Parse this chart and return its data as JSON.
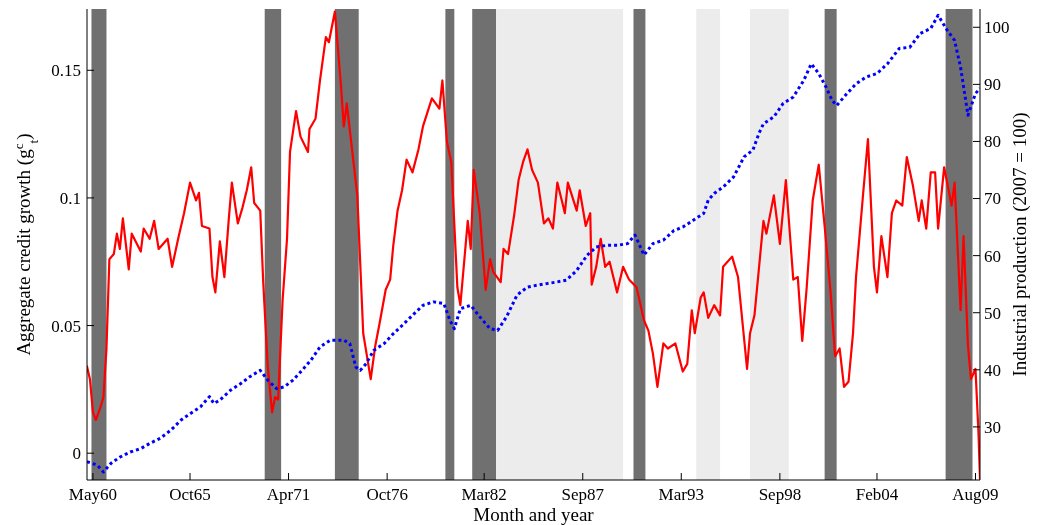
{
  "chart_data": {
    "type": "line",
    "xlabel": "Month and year",
    "ylabel": "Aggregate credit growth (g$^{c}$$_{t}$)",
    "y2label": "Industrial production (2007 = 100)",
    "xlim": [
      "1960-01",
      "2009-11"
    ],
    "xticks": [
      {
        "value": "1960-05",
        "label": "May60"
      },
      {
        "value": "1965-10",
        "label": "Oct65"
      },
      {
        "value": "1971-04",
        "label": "Apr71"
      },
      {
        "value": "1976-10",
        "label": "Oct76"
      },
      {
        "value": "1982-03",
        "label": "Mar82"
      },
      {
        "value": "1987-09",
        "label": "Sep87"
      },
      {
        "value": "1993-03",
        "label": "Mar93"
      },
      {
        "value": "1998-09",
        "label": "Sep98"
      },
      {
        "value": "2004-02",
        "label": "Feb04"
      },
      {
        "value": "2009-08",
        "label": "Aug09"
      }
    ],
    "ylim": [
      -0.0105,
      0.174
    ],
    "yticks": [
      0,
      0.05,
      0.1,
      0.15
    ],
    "y2lim": [
      20.7,
      103.2
    ],
    "y2ticks": [
      30,
      40,
      50,
      60,
      70,
      80,
      90,
      100
    ],
    "grid": false,
    "bands": [
      {
        "axis": "x",
        "from": "1960-04",
        "to": "1961-02",
        "color": "#707070"
      },
      {
        "axis": "x",
        "from": "1969-12",
        "to": "1970-11",
        "color": "#707070"
      },
      {
        "axis": "x",
        "from": "1973-11",
        "to": "1975-03",
        "color": "#707070"
      },
      {
        "axis": "x",
        "from": "1980-01",
        "to": "1980-07",
        "color": "#707070"
      },
      {
        "axis": "x",
        "from": "1981-07",
        "to": "1982-11",
        "color": "#707070"
      },
      {
        "axis": "x",
        "from": "1982-11",
        "to": "1989-12",
        "color": "#ececec"
      },
      {
        "axis": "x",
        "from": "1990-07",
        "to": "1991-03",
        "color": "#707070"
      },
      {
        "axis": "x",
        "from": "1994-01",
        "to": "1995-05",
        "color": "#ececec"
      },
      {
        "axis": "x",
        "from": "1997-01",
        "to": "1999-03",
        "color": "#ececec"
      },
      {
        "axis": "x",
        "from": "2001-03",
        "to": "2001-11",
        "color": "#707070"
      },
      {
        "axis": "x",
        "from": "2007-12",
        "to": "2009-06",
        "color": "#707070"
      }
    ],
    "series": [
      {
        "color": "#ff0000",
        "line_style": "solid",
        "x": [
          "1960-01",
          "1960-03",
          "1960-05",
          "1960-07",
          "1960-10",
          "1960-12",
          "1961-02",
          "1961-04",
          "1961-07",
          "1961-09",
          "1961-11",
          "1962-01",
          "1962-05",
          "1962-07",
          "1963-01",
          "1963-03",
          "1963-07",
          "1963-10",
          "1964-01",
          "1964-07",
          "1964-10",
          "1965-02",
          "1965-06",
          "1965-10",
          "1966-02",
          "1966-04",
          "1966-06",
          "1966-11",
          "1967-01",
          "1967-03",
          "1967-06",
          "1967-09",
          "1967-12",
          "1968-02",
          "1968-06",
          "1968-09",
          "1968-12",
          "1969-03",
          "1969-05",
          "1969-09",
          "1969-11",
          "1970-02",
          "1970-05",
          "1970-07",
          "1970-09",
          "1970-12",
          "1971-03",
          "1971-05",
          "1971-09",
          "1971-12",
          "1972-05",
          "1972-06",
          "1972-10",
          "1973-01",
          "1973-05",
          "1973-07",
          "1973-11",
          "1974-03",
          "1974-05",
          "1974-07",
          "1975-02",
          "1975-06",
          "1975-11",
          "1976-02",
          "1976-05",
          "1976-09",
          "1976-12",
          "1977-02",
          "1977-05",
          "1977-08",
          "1977-11",
          "1978-03",
          "1978-07",
          "1978-10",
          "1979-04",
          "1979-09",
          "1979-11",
          "1980-02",
          "1980-05",
          "1980-09",
          "1980-11",
          "1981-04",
          "1981-06",
          "1981-08",
          "1981-12",
          "1982-04",
          "1982-07",
          "1982-09",
          "1983-02",
          "1983-04",
          "1983-07",
          "1983-11",
          "1984-02",
          "1984-05",
          "1984-08",
          "1984-11",
          "1985-03",
          "1985-07",
          "1985-10",
          "1986-01",
          "1986-04",
          "1986-07",
          "1986-09",
          "1986-11",
          "1987-05",
          "1987-07",
          "1987-11",
          "1988-02",
          "1988-03",
          "1988-06",
          "1988-09",
          "1988-12",
          "1989-03",
          "1989-08",
          "1989-12",
          "1990-04",
          "1990-09",
          "1991-02",
          "1991-05",
          "1991-08",
          "1991-11",
          "1992-03",
          "1992-06",
          "1992-11",
          "1993-04",
          "1993-07",
          "1993-10",
          "1993-12",
          "1994-04",
          "1994-06",
          "1994-09",
          "1995-01",
          "1995-05",
          "1995-07",
          "1996-01",
          "1996-05",
          "1996-08",
          "1996-11",
          "1997-01",
          "1997-04",
          "1997-10",
          "1997-12",
          "1998-05",
          "1998-09",
          "1999-01",
          "1999-06",
          "1999-09",
          "1999-12",
          "2000-03",
          "2000-07",
          "2000-11",
          "2001-03",
          "2001-07",
          "2001-10",
          "2002-01",
          "2002-04",
          "2002-07",
          "2002-10",
          "2002-12",
          "2003-05",
          "2003-08",
          "2003-12",
          "2004-02",
          "2004-05",
          "2004-09",
          "2004-12",
          "2005-03",
          "2005-07",
          "2005-10",
          "2006-02",
          "2006-06",
          "2006-08",
          "2006-11",
          "2007-02",
          "2007-05",
          "2007-07",
          "2007-11",
          "2008-04",
          "2008-06",
          "2008-10",
          "2008-12",
          "2009-03",
          "2009-05",
          "2009-08",
          "2009-10",
          "2009-11"
        ],
        "values": [
          0.034,
          0.029,
          0.016,
          0.013,
          0.018,
          0.022,
          0.041,
          0.076,
          0.078,
          0.086,
          0.08,
          0.092,
          0.072,
          0.086,
          0.079,
          0.088,
          0.084,
          0.091,
          0.08,
          0.084,
          0.073,
          0.084,
          0.094,
          0.106,
          0.099,
          0.102,
          0.089,
          0.088,
          0.069,
          0.063,
          0.083,
          0.069,
          0.092,
          0.106,
          0.09,
          0.096,
          0.103,
          0.112,
          0.098,
          0.095,
          0.067,
          0.034,
          0.016,
          0.022,
          0.021,
          0.06,
          0.084,
          0.118,
          0.134,
          0.124,
          0.118,
          0.127,
          0.131,
          0.146,
          0.163,
          0.161,
          0.173,
          0.145,
          0.128,
          0.137,
          0.101,
          0.047,
          0.029,
          0.042,
          0.051,
          0.064,
          0.068,
          0.081,
          0.095,
          0.103,
          0.115,
          0.11,
          0.119,
          0.128,
          0.139,
          0.135,
          0.146,
          0.122,
          0.114,
          0.065,
          0.058,
          0.091,
          0.08,
          0.111,
          0.094,
          0.064,
          0.076,
          0.071,
          0.067,
          0.08,
          0.078,
          0.093,
          0.107,
          0.114,
          0.119,
          0.111,
          0.106,
          0.09,
          0.092,
          0.088,
          0.106,
          0.099,
          0.094,
          0.106,
          0.095,
          0.103,
          0.089,
          0.094,
          0.066,
          0.073,
          0.084,
          0.073,
          0.075,
          0.063,
          0.073,
          0.068,
          0.065,
          0.052,
          0.048,
          0.039,
          0.026,
          0.043,
          0.041,
          0.043,
          0.032,
          0.035,
          0.056,
          0.047,
          0.061,
          0.063,
          0.053,
          0.058,
          0.054,
          0.073,
          0.077,
          0.069,
          0.051,
          0.033,
          0.047,
          0.054,
          0.091,
          0.086,
          0.101,
          0.082,
          0.107,
          0.068,
          0.069,
          0.044,
          0.065,
          0.099,
          0.113,
          0.089,
          0.063,
          0.038,
          0.041,
          0.026,
          0.028,
          0.047,
          0.069,
          0.103,
          0.123,
          0.073,
          0.063,
          0.085,
          0.069,
          0.094,
          0.099,
          0.097,
          0.116,
          0.105,
          0.091,
          0.099,
          0.088,
          0.11,
          0.11,
          0.088,
          0.112,
          0.097,
          0.106,
          0.056,
          0.085,
          0.042,
          0.029,
          0.033,
          0.008,
          -0.01
        ]
      },
      {
        "color": "#0000ff",
        "line_style": "dotted",
        "axis": "y2",
        "x": [
          "1960-01",
          "1960-08",
          "1960-12",
          "1961-05",
          "1961-11",
          "1962-06",
          "1963-01",
          "1963-07",
          "1964-02",
          "1964-09",
          "1965-04",
          "1965-10",
          "1966-05",
          "1966-11",
          "1967-02",
          "1967-06",
          "1968-01",
          "1968-08",
          "1969-02",
          "1969-09",
          "1970-02",
          "1970-08",
          "1971-01",
          "1971-07",
          "1972-01",
          "1972-07",
          "1973-01",
          "1973-08",
          "1974-05",
          "1974-09",
          "1975-01",
          "1975-04",
          "1975-08",
          "1976-01",
          "1976-08",
          "1977-02",
          "1977-07",
          "1978-04",
          "1978-10",
          "1979-05",
          "1979-12",
          "1980-04",
          "1980-07",
          "1980-11",
          "1981-06",
          "1981-12",
          "1982-07",
          "1982-12",
          "1983-06",
          "1984-01",
          "1984-08",
          "1985-02",
          "1985-09",
          "1986-04",
          "1986-10",
          "1987-05",
          "1987-12",
          "1988-06",
          "1989-01",
          "1989-08",
          "1990-03",
          "1990-08",
          "1991-02",
          "1991-08",
          "1992-03",
          "1992-10",
          "1993-04",
          "1993-11",
          "1994-06",
          "1994-09",
          "1995-01",
          "1995-07",
          "1996-02",
          "1996-09",
          "1997-03",
          "1997-07",
          "1997-10",
          "1998-05",
          "1998-11",
          "1999-06",
          "2000-01",
          "2000-06",
          "2000-11",
          "2001-04",
          "2001-08",
          "2001-11",
          "2002-06",
          "2002-12",
          "2003-07",
          "2004-02",
          "2004-09",
          "2005-05",
          "2005-12",
          "2006-07",
          "2007-02",
          "2007-07",
          "2008-01",
          "2008-06",
          "2008-10",
          "2009-03",
          "2009-08",
          "2009-11"
        ],
        "values": [
          23.9,
          23.3,
          22.1,
          23.6,
          24.7,
          25.6,
          26.2,
          27.1,
          28.0,
          29.4,
          31.2,
          32.3,
          33.5,
          35.3,
          34.1,
          34.7,
          36.4,
          37.6,
          38.8,
          39.9,
          38.2,
          36.7,
          37.0,
          38.2,
          39.9,
          41.7,
          44.0,
          45.2,
          45.2,
          44.6,
          40.5,
          39.9,
          41.1,
          43.4,
          44.6,
          46.3,
          47.5,
          49.8,
          51.3,
          51.9,
          51.6,
          48.7,
          47.2,
          50.7,
          51.3,
          49.3,
          47.2,
          46.9,
          49.3,
          53.1,
          54.5,
          54.8,
          55.1,
          55.4,
          55.7,
          57.4,
          60.1,
          61.5,
          61.8,
          61.8,
          62.1,
          63.6,
          60.1,
          62.1,
          62.7,
          64.4,
          65.0,
          66.2,
          67.4,
          69.7,
          70.9,
          72.0,
          73.8,
          77.3,
          78.5,
          81.4,
          83.1,
          84.3,
          86.6,
          87.8,
          90.7,
          93.6,
          91.9,
          89.5,
          87.2,
          86.3,
          88.4,
          90.1,
          91.3,
          91.9,
          93.6,
          96.3,
          96.5,
          98.9,
          99.8,
          102.1,
          99.5,
          97.7,
          93.0,
          84.6,
          88.4,
          89.3
        ]
      }
    ]
  }
}
